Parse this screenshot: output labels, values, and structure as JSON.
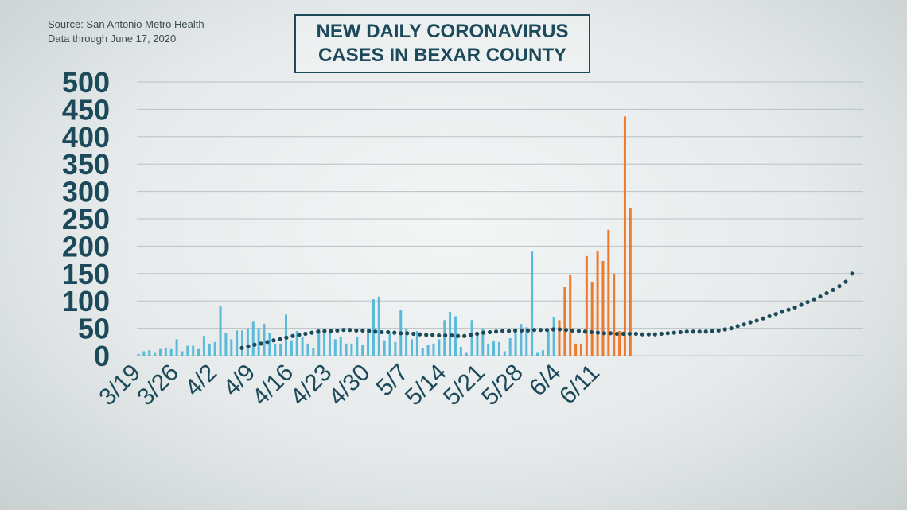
{
  "source": {
    "line1": "Source: San Antonio Metro Health",
    "line2": "Data through June 17, 2020"
  },
  "title": {
    "line1": "NEW DAILY CORONAVIRUS",
    "line2": "CASES IN BEXAR COUNTY"
  },
  "colors": {
    "blue_bar": "#5bbad8",
    "orange_bar": "#f07a2c",
    "trend": "#1c4a5a",
    "grid": "#b8c2c4",
    "text": "#1c4a5a"
  },
  "chart_data": {
    "type": "bar",
    "title": "NEW DAILY CORONAVIRUS CASES IN BEXAR COUNTY",
    "ylim": [
      0,
      500
    ],
    "yticks": [
      "500",
      "450",
      "400",
      "350",
      "300",
      "250",
      "200",
      "150",
      "100",
      "50",
      "0"
    ],
    "ytick_values": [
      500,
      450,
      400,
      350,
      300,
      250,
      200,
      150,
      100,
      50,
      0
    ],
    "xtick_labels": [
      "3/19",
      "3/26",
      "4/2",
      "4/9",
      "4/16",
      "4/23",
      "4/30",
      "5/7",
      "5/14",
      "5/21",
      "5/28",
      "6/4",
      "6/11"
    ],
    "grid": true,
    "series": [
      {
        "color": "blue",
        "values": [
          3,
          8,
          10,
          5,
          12,
          13,
          12,
          30,
          8,
          18,
          18,
          12,
          36,
          22,
          25,
          90,
          42,
          30,
          46,
          46,
          50,
          62,
          50,
          58,
          42,
          22,
          22,
          75,
          28,
          45,
          35,
          22,
          14,
          50,
          45,
          45,
          30,
          35,
          22,
          22,
          35,
          20,
          50,
          103,
          108,
          28,
          42,
          25,
          84,
          50,
          30,
          45,
          14,
          20,
          22,
          30,
          65,
          80,
          72,
          16,
          5,
          65,
          42,
          50,
          22,
          26,
          25,
          8,
          32,
          45,
          58,
          52,
          190,
          5,
          10,
          45,
          70
        ]
      },
      {
        "color": "orange",
        "values": [
          65,
          125,
          147,
          22,
          22,
          182,
          135,
          192,
          173,
          230,
          150,
          45,
          437,
          270
        ]
      }
    ],
    "trend_values": [
      14,
      17,
      20,
      22,
      25,
      28,
      30,
      33,
      36,
      38,
      40,
      42,
      44,
      45,
      45,
      46,
      47,
      47,
      46,
      46,
      45,
      44,
      43,
      43,
      42,
      41,
      41,
      40,
      39,
      38,
      38,
      37,
      37,
      37,
      36,
      36,
      38,
      40,
      42,
      43,
      44,
      45,
      45,
      46,
      46,
      46,
      47,
      47,
      47,
      48,
      48,
      47,
      46,
      45,
      44,
      43,
      42,
      41,
      41,
      40,
      40,
      40,
      40,
      39,
      39,
      39,
      40,
      41,
      42,
      43,
      44,
      44,
      44,
      44,
      45,
      46,
      48,
      50,
      54,
      57,
      61,
      64,
      68,
      72,
      76,
      80,
      84,
      88,
      93,
      98,
      103,
      108,
      114,
      120,
      127,
      135,
      150
    ]
  }
}
